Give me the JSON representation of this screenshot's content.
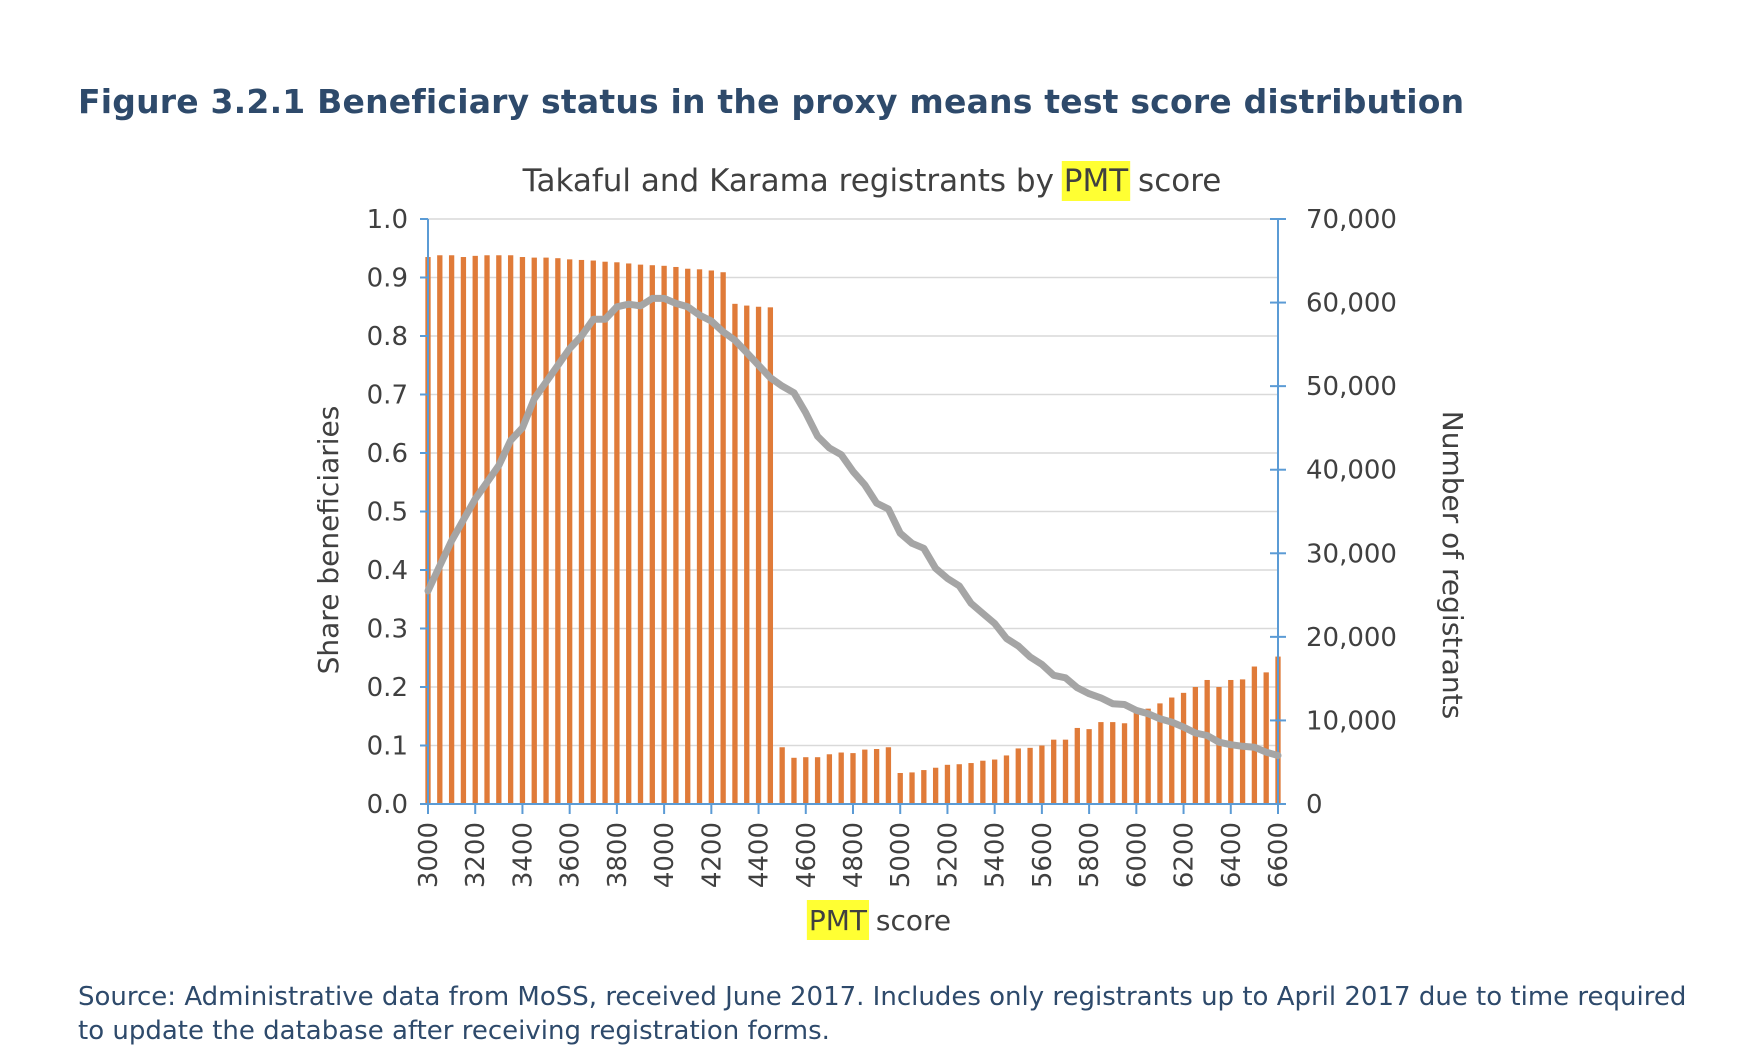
{
  "figure_title": "Figure 3.2.1 Beneficiary status in the proxy means test score distribution",
  "source_note": "Source: Administrative data from MoSS, received June 2017. Includes only registrants up to April 2017 due to time required to update the database after receiving registration forms.",
  "colors": {
    "bars": "#e07b39",
    "line": "#a5a5a5",
    "axis": "#5b9bd5",
    "grid": "#d9d9d9",
    "highlight": "#ffff33"
  },
  "chart_data": {
    "type": "bar+line",
    "title": {
      "pre": "Takaful and Karama registrants by ",
      "highlight": "PMT",
      "post": " score"
    },
    "xlabel": {
      "highlight": "PMT",
      "post": " score"
    },
    "ylabel_left": "Share beneficiaries",
    "ylabel_right": "Number of registrants",
    "ylim_left": [
      0,
      1.0
    ],
    "ylim_right": [
      0,
      70000
    ],
    "yticks_left": [
      "0.0",
      "0.1",
      "0.2",
      "0.3",
      "0.4",
      "0.5",
      "0.6",
      "0.7",
      "0.8",
      "0.9",
      "1.0"
    ],
    "yticks_right": [
      "0",
      "10,000",
      "20,000",
      "30,000",
      "40,000",
      "50,000",
      "60,000",
      "70,000"
    ],
    "xticks": [
      "3000",
      "3200",
      "3400",
      "3600",
      "3800",
      "4000",
      "4200",
      "4400",
      "4600",
      "4800",
      "5000",
      "5200",
      "5400",
      "5600",
      "5800",
      "6000",
      "6200",
      "6400",
      "6600"
    ],
    "grid": true,
    "x": [
      3000,
      3050,
      3100,
      3150,
      3200,
      3250,
      3300,
      3350,
      3400,
      3450,
      3500,
      3550,
      3600,
      3650,
      3700,
      3750,
      3800,
      3850,
      3900,
      3950,
      4000,
      4050,
      4100,
      4150,
      4200,
      4250,
      4300,
      4350,
      4400,
      4450,
      4500,
      4550,
      4600,
      4650,
      4700,
      4750,
      4800,
      4850,
      4900,
      4950,
      5000,
      5050,
      5100,
      5150,
      5200,
      5250,
      5300,
      5350,
      5400,
      5450,
      5500,
      5550,
      5600,
      5650,
      5700,
      5750,
      5800,
      5850,
      5900,
      5950,
      6000,
      6050,
      6100,
      6150,
      6200,
      6250,
      6300,
      6350,
      6400,
      6450,
      6500,
      6550,
      6600
    ],
    "series": [
      {
        "type": "bar",
        "axis": "left",
        "values": [
          0.935,
          0.938,
          0.938,
          0.935,
          0.937,
          0.938,
          0.938,
          0.938,
          0.935,
          0.934,
          0.934,
          0.933,
          0.931,
          0.93,
          0.929,
          0.927,
          0.926,
          0.924,
          0.922,
          0.921,
          0.92,
          0.918,
          0.915,
          0.914,
          0.912,
          0.909,
          0.855,
          0.852,
          0.85,
          0.849,
          0.097,
          0.079,
          0.08,
          0.08,
          0.085,
          0.088,
          0.087,
          0.093,
          0.094,
          0.097,
          0.053,
          0.054,
          0.058,
          0.062,
          0.067,
          0.068,
          0.07,
          0.074,
          0.076,
          0.083,
          0.095,
          0.096,
          0.1,
          0.11,
          0.11,
          0.13,
          0.128,
          0.14,
          0.14,
          0.138,
          0.158,
          0.163,
          0.172,
          0.182,
          0.19,
          0.2,
          0.212,
          0.2,
          0.212,
          0.213,
          0.235,
          0.225,
          0.252
        ]
      },
      {
        "type": "line",
        "axis": "right",
        "values": [
          25500,
          28500,
          31500,
          34000,
          36500,
          38500,
          40500,
          43500,
          45000,
          48500,
          50500,
          52500,
          54500,
          56000,
          58000,
          58000,
          59500,
          59800,
          59600,
          60500,
          60500,
          59900,
          59500,
          58500,
          57800,
          56500,
          55500,
          54000,
          52500,
          51000,
          50000,
          49200,
          46800,
          44000,
          42600,
          41800,
          39800,
          38200,
          36000,
          35300,
          32400,
          31200,
          30600,
          28200,
          27000,
          26100,
          24000,
          22800,
          21600,
          19800,
          18900,
          17600,
          16700,
          15400,
          15100,
          13900,
          13200,
          12700,
          12000,
          11900,
          11200,
          10800,
          10200,
          9800,
          9200,
          8500,
          8200,
          7400,
          7100,
          6900,
          6800,
          6200,
          5800
        ]
      }
    ]
  }
}
